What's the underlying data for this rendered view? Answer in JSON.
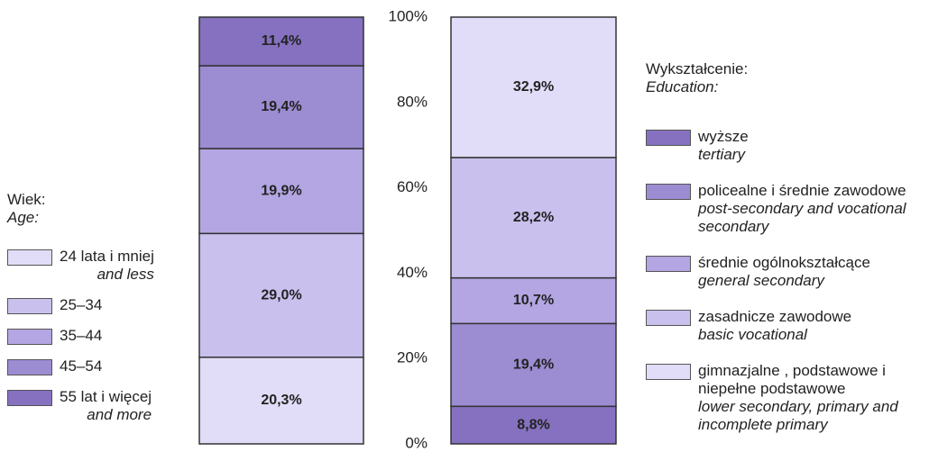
{
  "chart_data": {
    "type": "bar",
    "stacked": true,
    "ylim": [
      0,
      100
    ],
    "yticks": [
      {
        "value": 0,
        "label": "0%"
      },
      {
        "value": 20,
        "label": "20%"
      },
      {
        "value": 40,
        "label": "40%"
      },
      {
        "value": 60,
        "label": "60%"
      },
      {
        "value": 80,
        "label": "80%"
      },
      {
        "value": 100,
        "label": "100%"
      }
    ],
    "groups": [
      {
        "legend_title": "Wiek:",
        "legend_title_en": "Age:",
        "series": [
          {
            "name": "24 lata i mniej",
            "name_en": "and less",
            "color": "#e1dcf7",
            "values": [
              20.3
            ],
            "value_labels": [
              "20,3%"
            ]
          },
          {
            "name": "25–34",
            "color": "#c9c0ee",
            "values": [
              29.0
            ],
            "value_labels": [
              "29,0%"
            ]
          },
          {
            "name": "35–44",
            "color": "#b3a6e2",
            "values": [
              19.9
            ],
            "value_labels": [
              "19,9%"
            ]
          },
          {
            "name": "45–54",
            "color": "#9c8cd2",
            "values": [
              19.4
            ],
            "value_labels": [
              "19,4%"
            ]
          },
          {
            "name": "55 lat i więcej",
            "name_en": "and more",
            "color": "#8571c0",
            "values": [
              11.4
            ],
            "value_labels": [
              "11,4%"
            ]
          }
        ]
      },
      {
        "legend_title": "Wykształcenie:",
        "legend_title_en": "Education:",
        "series": [
          {
            "name": "wyższe",
            "name_en": "tertiary",
            "color": "#8571c0",
            "values": [
              8.8
            ],
            "value_labels": [
              "8,8%"
            ]
          },
          {
            "name": "policealne i średnie zawodowe",
            "name_en": "post-secondary and vocational secondary",
            "color": "#9c8cd2",
            "values": [
              19.4
            ],
            "value_labels": [
              "19,4%"
            ]
          },
          {
            "name": "średnie ogólnokształcące",
            "name_en": "general secondary",
            "color": "#b3a6e2",
            "values": [
              10.7
            ],
            "value_labels": [
              "10,7%"
            ]
          },
          {
            "name": "zasadnicze zawodowe",
            "name_en": "basic vocational",
            "color": "#c9c0ee",
            "values": [
              28.2
            ],
            "value_labels": [
              "28,2%"
            ]
          },
          {
            "name": "gimnazjalne , podstawowe i niepełne podstawowe",
            "name_en": "lower secondary, primary and incomplete primary",
            "color": "#e1dcf7",
            "values": [
              32.9
            ],
            "value_labels": [
              "32,9%"
            ]
          }
        ]
      }
    ]
  }
}
